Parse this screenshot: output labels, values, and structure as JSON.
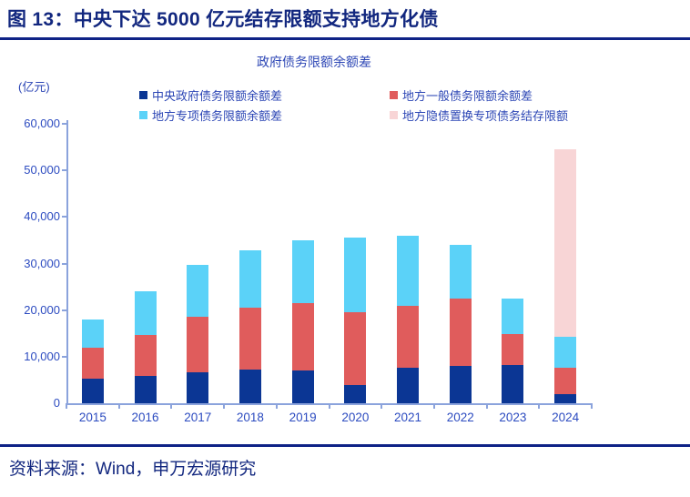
{
  "header": {
    "title": "图 13：中央下达 5000 亿元结存限额支持地方化债"
  },
  "footer": {
    "source": "资料来源：Wind，申万宏源研究"
  },
  "chart": {
    "subtitle": "政府债务限额余额差",
    "unit_label": "(亿元)",
    "legend": [
      {
        "label": "中央政府债务限额余额差",
        "color": "#0B3694"
      },
      {
        "label": "地方一般债务限额余额差",
        "color": "#E05C5C"
      },
      {
        "label": "地方专项债务限额余额差",
        "color": "#5BD2F8"
      },
      {
        "label": "地方隐债置换专项债务结存限额",
        "color": "#F8D5D6"
      }
    ],
    "y_tick_labels": [
      "0",
      "10,000",
      "20,000",
      "30,000",
      "40,000",
      "50,000",
      "60,000"
    ]
  },
  "chart_data": {
    "type": "bar",
    "stacked": true,
    "title": "政府债务限额余额差",
    "ylabel": "(亿元)",
    "ylim": [
      0,
      60000
    ],
    "y_tick_step": 10000,
    "grid": false,
    "legend_position": "top",
    "categories": [
      "2015",
      "2016",
      "2017",
      "2018",
      "2019",
      "2020",
      "2021",
      "2022",
      "2023",
      "2024"
    ],
    "series": [
      {
        "name": "中央政府债务限额余额差",
        "color": "#0B3694",
        "values": [
          5200,
          5800,
          6600,
          7300,
          7000,
          3900,
          7600,
          8100,
          8200,
          2000
        ]
      },
      {
        "name": "地方一般债务限额余额差",
        "color": "#E05C5C",
        "values": [
          6700,
          8900,
          11900,
          13200,
          14500,
          15600,
          13300,
          14400,
          6700,
          5600
        ]
      },
      {
        "name": "地方专项债务限额余额差",
        "color": "#5BD2F8",
        "values": [
          6000,
          9400,
          11300,
          12300,
          13400,
          16100,
          15000,
          11600,
          7600,
          6700
        ]
      },
      {
        "name": "地方隐债置换专项债务结存限额",
        "color": "#F8D5D6",
        "values": [
          0,
          0,
          0,
          0,
          0,
          0,
          0,
          0,
          0,
          40300
        ]
      }
    ]
  }
}
